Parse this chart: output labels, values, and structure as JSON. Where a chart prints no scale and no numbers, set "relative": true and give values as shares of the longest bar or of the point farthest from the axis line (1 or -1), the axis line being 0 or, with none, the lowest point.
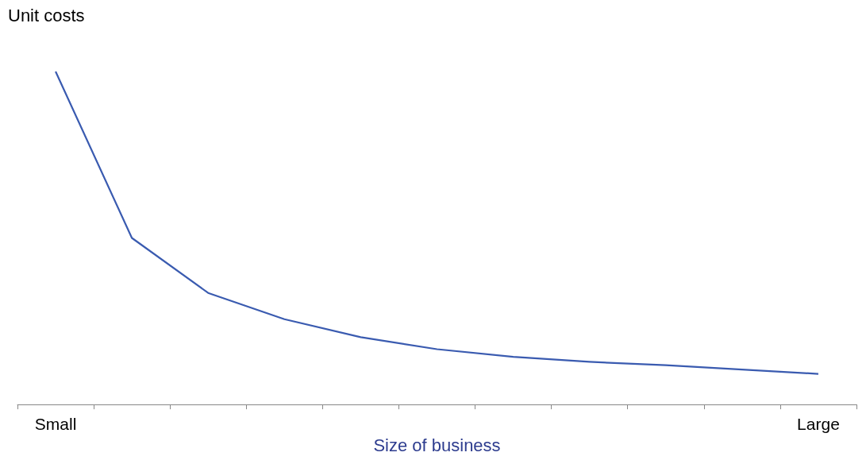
{
  "chart_data": {
    "type": "line",
    "relative": true,
    "ylabel": "Unit costs",
    "xlabel": "Size of business",
    "categories": [
      "Small",
      null,
      null,
      null,
      null,
      null,
      null,
      null,
      null,
      null,
      "Large"
    ],
    "series": [
      {
        "color": "#3a5bb0",
        "values": [
          1,
          0.5,
          0.335,
          0.256,
          0.202,
          0.166,
          0.143,
          0.128,
          0.118,
          0.105,
          0.092
        ]
      }
    ],
    "grid": false,
    "marker": "none",
    "line_style": "solid"
  }
}
